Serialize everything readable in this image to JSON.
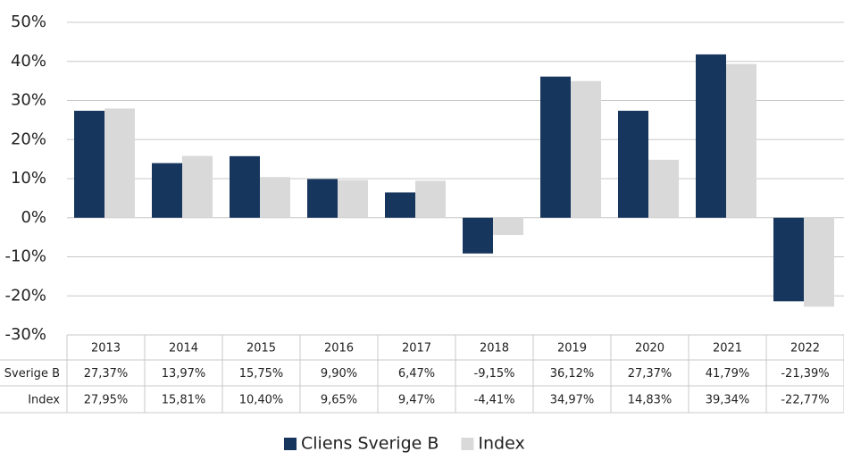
{
  "chart_data": {
    "type": "bar",
    "categories": [
      "2013",
      "2014",
      "2015",
      "2016",
      "2017",
      "2018",
      "2019",
      "2020",
      "2021",
      "2022"
    ],
    "series": [
      {
        "name": "Cliens Sverige B",
        "color": "#17365d",
        "values": [
          27.37,
          13.97,
          15.75,
          9.9,
          6.47,
          -9.15,
          36.12,
          27.37,
          41.79,
          -21.39
        ],
        "value_labels": [
          "27,37%",
          "13,97%",
          "15,75%",
          "9,90%",
          "6,47%",
          "-9,15%",
          "36,12%",
          "27,37%",
          "41,79%",
          "-21,39%"
        ]
      },
      {
        "name": "Index",
        "color": "#d9d9d9",
        "values": [
          27.95,
          15.81,
          10.4,
          9.65,
          9.47,
          -4.41,
          34.97,
          14.83,
          39.34,
          -22.77
        ],
        "value_labels": [
          "27,95%",
          "15,81%",
          "10,40%",
          "9,65%",
          "9,47%",
          "-4,41%",
          "34,97%",
          "14,83%",
          "39,34%",
          "-22,77%"
        ]
      }
    ],
    "ylim": [
      -30,
      50
    ],
    "yticks": [
      {
        "value": -30,
        "label": "-30%"
      },
      {
        "value": -20,
        "label": "-20%"
      },
      {
        "value": -10,
        "label": "-10%"
      },
      {
        "value": 0,
        "label": "0%"
      },
      {
        "value": 10,
        "label": "10%"
      },
      {
        "value": 20,
        "label": "20%"
      },
      {
        "value": 30,
        "label": "30%"
      },
      {
        "value": 40,
        "label": "40%"
      },
      {
        "value": 50,
        "label": "50%"
      }
    ],
    "grid": true,
    "legend": "bottom"
  }
}
